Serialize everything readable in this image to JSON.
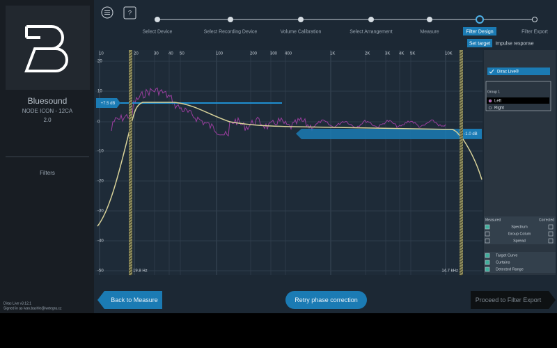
{
  "sidebar": {
    "device_name": "Bluesound",
    "model": "NODE ICON - 12CA",
    "version": "2.0",
    "section": "Filters",
    "app_version": "Dirac Live v3.12.1",
    "signed_in": "Signed in as ivan.bachle@iwrtegra.cz"
  },
  "steps": [
    "Select Device",
    "Select Recording Device",
    "Volume Calibration",
    "Select Arrangement",
    "Measure",
    "Filter Design",
    "Filter Export"
  ],
  "active_step": "Filter Design",
  "tabs": [
    "Set target",
    "Impulse response"
  ],
  "graph": {
    "x_labels": [
      "10",
      "20",
      "30",
      "40",
      "50",
      "100",
      "200",
      "300",
      "400",
      "1K",
      "2K",
      "3K",
      "4K",
      "5K",
      "10K"
    ],
    "y_labels": [
      "20",
      "10",
      "0",
      "-10",
      "-20",
      "-30",
      "-40",
      "-50"
    ],
    "left_gain": "+7.5 dB",
    "right_gain": "-1.0 dB",
    "low_cutoff": "19.8 Hz",
    "high_cutoff": "14.7 kHz"
  },
  "panel": {
    "preset": "Dirac Live®",
    "group": "Group 1",
    "channels": [
      "Left",
      "Right"
    ],
    "measured": "Measured",
    "corrected": "Corrected",
    "options": [
      "Spectrum",
      "Group Colum",
      "Spread"
    ],
    "overlays": [
      "Target Curve",
      "Curtains",
      "Detected Range"
    ]
  },
  "buttons": {
    "back": "Back to Measure",
    "retry": "Retry phase correction",
    "proceed": "Proceed to Filter Export"
  }
}
